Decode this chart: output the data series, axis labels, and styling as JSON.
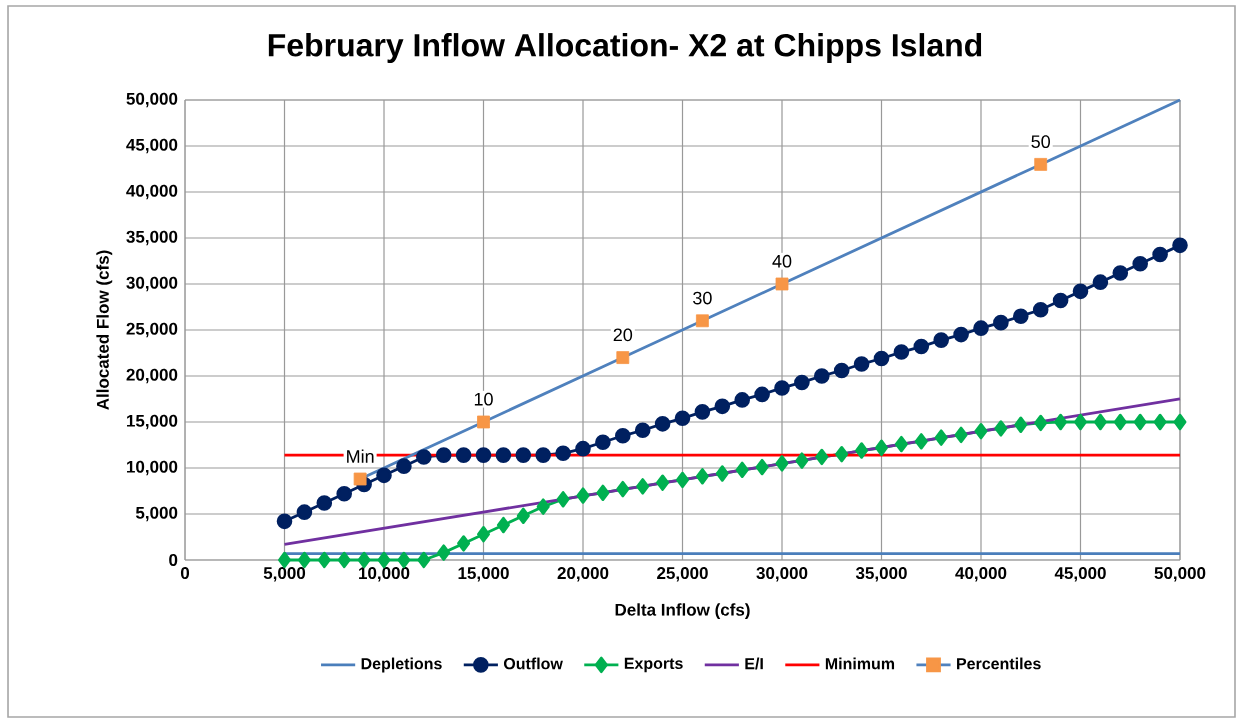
{
  "chart_data": {
    "type": "line",
    "title": "February Inflow Allocation- X2 at Chipps Island",
    "xlabel": "Delta Inflow (cfs)",
    "ylabel": "Allocated Flow (cfs)",
    "xlim": [
      0,
      50000
    ],
    "ylim": [
      0,
      50000
    ],
    "xticks": [
      0,
      {
        "value": 5000,
        "label": "5,000"
      },
      {
        "value": 10000,
        "label": "10,000"
      },
      {
        "value": 15000,
        "label": "15,000"
      },
      {
        "value": 20000,
        "label": "20,000"
      },
      {
        "value": 25000,
        "label": "25,000"
      },
      {
        "value": 30000,
        "label": "30,000"
      },
      {
        "value": 35000,
        "label": "35,000"
      },
      {
        "value": 40000,
        "label": "40,000"
      },
      {
        "value": 45000,
        "label": "45,000"
      },
      {
        "value": 50000,
        "label": "50,000"
      }
    ],
    "yticks": [
      0,
      {
        "value": 5000,
        "label": "5,000"
      },
      {
        "value": 10000,
        "label": "10,000"
      },
      {
        "value": 15000,
        "label": "15,000"
      },
      {
        "value": 20000,
        "label": "20,000"
      },
      {
        "value": 25000,
        "label": "25,000"
      },
      {
        "value": 30000,
        "label": "30,000"
      },
      {
        "value": 35000,
        "label": "35,000"
      },
      {
        "value": 40000,
        "label": "40,000"
      },
      {
        "value": 45000,
        "label": "45,000"
      },
      {
        "value": 50000,
        "label": "50,000"
      }
    ],
    "grid": true,
    "legend": "bottom",
    "annotations": [
      {
        "text": "Min",
        "x": 8800,
        "y": 8800
      },
      {
        "text": "10",
        "x": 15000,
        "y": 15000
      },
      {
        "text": "20",
        "x": 22000,
        "y": 22000
      },
      {
        "text": "30",
        "x": 26000,
        "y": 26000
      },
      {
        "text": "40",
        "x": 30000,
        "y": 30000
      },
      {
        "text": "50",
        "x": 43000,
        "y": 43000
      }
    ],
    "series": [
      {
        "name": "Depletions",
        "color": "#4a7ebb",
        "marker": "none",
        "x": [
          5000,
          50000
        ],
        "values": [
          700,
          700
        ]
      },
      {
        "name": "Outflow",
        "color": "#002060",
        "marker": "circle",
        "x": [
          5000,
          6000,
          7000,
          8000,
          9000,
          10000,
          11000,
          12000,
          13000,
          14000,
          15000,
          16000,
          17000,
          18000,
          19000,
          20000,
          21000,
          22000,
          23000,
          24000,
          25000,
          26000,
          27000,
          28000,
          29000,
          30000,
          31000,
          32000,
          33000,
          34000,
          35000,
          36000,
          37000,
          38000,
          39000,
          40000,
          41000,
          42000,
          43000,
          44000,
          45000,
          46000,
          47000,
          48000,
          49000,
          50000
        ],
        "values": [
          4200,
          5200,
          6200,
          7200,
          8200,
          9200,
          10200,
          11200,
          11400,
          11400,
          11400,
          11400,
          11400,
          11400,
          11600,
          12100,
          12800,
          13500,
          14100,
          14800,
          15400,
          16100,
          16700,
          17400,
          18000,
          18700,
          19300,
          20000,
          20600,
          21300,
          21900,
          22600,
          23200,
          23900,
          24500,
          25200,
          25800,
          26500,
          27200,
          28200,
          29200,
          30200,
          31200,
          32200,
          33200,
          34200
        ]
      },
      {
        "name": "Exports",
        "color": "#00b050",
        "marker": "diamond",
        "x": [
          5000,
          6000,
          7000,
          8000,
          9000,
          10000,
          11000,
          12000,
          13000,
          14000,
          15000,
          16000,
          17000,
          18000,
          19000,
          20000,
          21000,
          22000,
          23000,
          24000,
          25000,
          26000,
          27000,
          28000,
          29000,
          30000,
          31000,
          32000,
          33000,
          34000,
          35000,
          36000,
          37000,
          38000,
          39000,
          40000,
          41000,
          42000,
          43000,
          44000,
          45000,
          46000,
          47000,
          48000,
          49000,
          50000
        ],
        "values": [
          0,
          0,
          0,
          0,
          0,
          0,
          0,
          0,
          800,
          1800,
          2800,
          3800,
          4800,
          5800,
          6600,
          7000,
          7300,
          7700,
          8000,
          8400,
          8700,
          9100,
          9400,
          9800,
          10100,
          10500,
          10800,
          11200,
          11500,
          11900,
          12200,
          12600,
          12900,
          13300,
          13600,
          14000,
          14300,
          14700,
          14900,
          15000,
          15000,
          15000,
          15000,
          15000,
          15000,
          15000
        ]
      },
      {
        "name": "E/I",
        "color": "#7030a0",
        "marker": "none",
        "x": [
          5000,
          50000
        ],
        "values": [
          1700,
          17500
        ]
      },
      {
        "name": "Minimum",
        "color": "#ff0000",
        "marker": "none",
        "x": [
          5000,
          50000
        ],
        "values": [
          11400,
          11400
        ]
      },
      {
        "name": "Percentiles",
        "color": "#4f81bd",
        "marker": "square",
        "colors": [
          "#f79646",
          "#f79646",
          "#f79646",
          "#f79646",
          "#f79646",
          "#f79646"
        ],
        "x": [
          8800,
          15000,
          22000,
          26000,
          30000,
          43000
        ],
        "values": [
          8800,
          15000,
          22000,
          26000,
          30000,
          43000
        ]
      },
      {
        "color": "#4f81bd",
        "marker": "none",
        "x": [
          43000,
          50000
        ],
        "values": [
          43000,
          50000
        ]
      }
    ]
  }
}
